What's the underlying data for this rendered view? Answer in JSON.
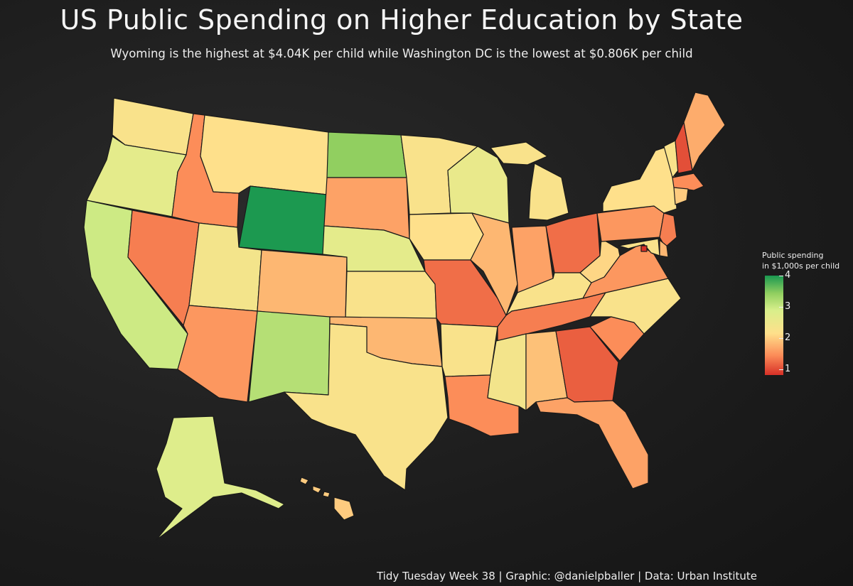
{
  "title": "US Public Spending on Higher Education by State",
  "subtitle": "Wyoming is the highest at $4.04K per child while Washington DC is the lowest at $0.806K per child",
  "legend": {
    "title_line1": "Public spending",
    "title_line2": "in $1,000s per child",
    "ticks": [
      "4",
      "3",
      "2",
      "1"
    ],
    "colors": [
      "#1a9850",
      "#91cf60",
      "#d9ef8b",
      "#fee08b",
      "#fc8d59",
      "#d73027"
    ]
  },
  "caption": "Tidy Tuesday Week 38 | Graphic: @danielpballer | Data: Urban Institute",
  "states": [
    {
      "name": "Washington",
      "value": 2.3
    },
    {
      "name": "Oregon",
      "value": 2.7
    },
    {
      "name": "California",
      "value": 3.0
    },
    {
      "name": "Nevada",
      "value": 1.3
    },
    {
      "name": "Idaho",
      "value": 1.4
    },
    {
      "name": "Montana",
      "value": 2.2
    },
    {
      "name": "Wyoming",
      "value": 4.04
    },
    {
      "name": "Utah",
      "value": 2.4
    },
    {
      "name": "Arizona",
      "value": 1.5
    },
    {
      "name": "Colorado",
      "value": 1.8
    },
    {
      "name": "New Mexico",
      "value": 3.2
    },
    {
      "name": "North Dakota",
      "value": 3.5
    },
    {
      "name": "South Dakota",
      "value": 1.6
    },
    {
      "name": "Nebraska",
      "value": 2.7
    },
    {
      "name": "Kansas",
      "value": 2.3
    },
    {
      "name": "Oklahoma",
      "value": 1.8
    },
    {
      "name": "Texas",
      "value": 2.3
    },
    {
      "name": "Minnesota",
      "value": 2.3
    },
    {
      "name": "Iowa",
      "value": 2.2
    },
    {
      "name": "Missouri",
      "value": 1.2
    },
    {
      "name": "Arkansas",
      "value": 2.3
    },
    {
      "name": "Louisiana",
      "value": 1.4
    },
    {
      "name": "Wisconsin",
      "value": 2.6
    },
    {
      "name": "Illinois",
      "value": 1.8
    },
    {
      "name": "Michigan",
      "value": 2.3
    },
    {
      "name": "Indiana",
      "value": 1.6
    },
    {
      "name": "Ohio",
      "value": 1.2
    },
    {
      "name": "Kentucky",
      "value": 2.3
    },
    {
      "name": "Tennessee",
      "value": 1.3
    },
    {
      "name": "Mississippi",
      "value": 2.4
    },
    {
      "name": "Alabama",
      "value": 1.9
    },
    {
      "name": "Georgia",
      "value": 1.1
    },
    {
      "name": "Florida",
      "value": 1.6
    },
    {
      "name": "South Carolina",
      "value": 1.4
    },
    {
      "name": "North Carolina",
      "value": 2.3
    },
    {
      "name": "Virginia",
      "value": 1.5
    },
    {
      "name": "West Virginia",
      "value": 2.1
    },
    {
      "name": "Pennsylvania",
      "value": 1.5
    },
    {
      "name": "New York",
      "value": 2.2
    },
    {
      "name": "Vermont",
      "value": 2.3
    },
    {
      "name": "New Hampshire",
      "value": 1.0
    },
    {
      "name": "Maine",
      "value": 1.7
    },
    {
      "name": "Massachusetts",
      "value": 1.4
    },
    {
      "name": "Connecticut",
      "value": 2.0
    },
    {
      "name": "New Jersey",
      "value": 1.3
    },
    {
      "name": "Delaware",
      "value": 1.8
    },
    {
      "name": "Maryland",
      "value": 2.3
    },
    {
      "name": "Washington DC",
      "value": 0.806
    },
    {
      "name": "Alaska",
      "value": 2.8
    },
    {
      "name": "Hawaii",
      "value": 2.0
    }
  ]
}
